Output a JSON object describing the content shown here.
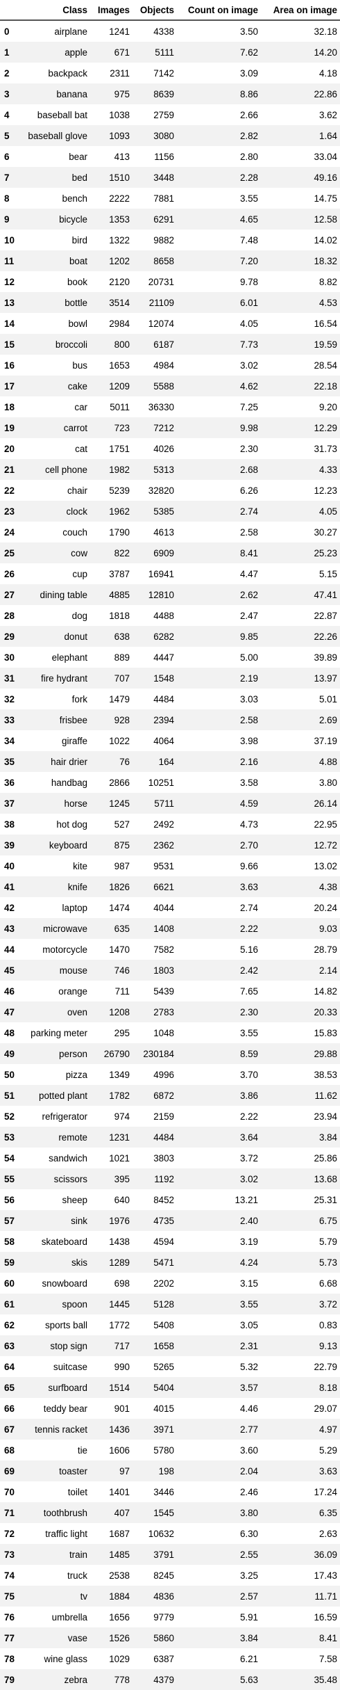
{
  "table": {
    "columns": [
      "",
      "Class",
      "Images",
      "Objects",
      "Count on image",
      "Area on image"
    ],
    "rows": [
      [
        "0",
        "airplane",
        "1241",
        "4338",
        "3.50",
        "32.18"
      ],
      [
        "1",
        "apple",
        "671",
        "5111",
        "7.62",
        "14.20"
      ],
      [
        "2",
        "backpack",
        "2311",
        "7142",
        "3.09",
        "4.18"
      ],
      [
        "3",
        "banana",
        "975",
        "8639",
        "8.86",
        "22.86"
      ],
      [
        "4",
        "baseball bat",
        "1038",
        "2759",
        "2.66",
        "3.62"
      ],
      [
        "5",
        "baseball glove",
        "1093",
        "3080",
        "2.82",
        "1.64"
      ],
      [
        "6",
        "bear",
        "413",
        "1156",
        "2.80",
        "33.04"
      ],
      [
        "7",
        "bed",
        "1510",
        "3448",
        "2.28",
        "49.16"
      ],
      [
        "8",
        "bench",
        "2222",
        "7881",
        "3.55",
        "14.75"
      ],
      [
        "9",
        "bicycle",
        "1353",
        "6291",
        "4.65",
        "12.58"
      ],
      [
        "10",
        "bird",
        "1322",
        "9882",
        "7.48",
        "14.02"
      ],
      [
        "11",
        "boat",
        "1202",
        "8658",
        "7.20",
        "18.32"
      ],
      [
        "12",
        "book",
        "2120",
        "20731",
        "9.78",
        "8.82"
      ],
      [
        "13",
        "bottle",
        "3514",
        "21109",
        "6.01",
        "4.53"
      ],
      [
        "14",
        "bowl",
        "2984",
        "12074",
        "4.05",
        "16.54"
      ],
      [
        "15",
        "broccoli",
        "800",
        "6187",
        "7.73",
        "19.59"
      ],
      [
        "16",
        "bus",
        "1653",
        "4984",
        "3.02",
        "28.54"
      ],
      [
        "17",
        "cake",
        "1209",
        "5588",
        "4.62",
        "22.18"
      ],
      [
        "18",
        "car",
        "5011",
        "36330",
        "7.25",
        "9.20"
      ],
      [
        "19",
        "carrot",
        "723",
        "7212",
        "9.98",
        "12.29"
      ],
      [
        "20",
        "cat",
        "1751",
        "4026",
        "2.30",
        "31.73"
      ],
      [
        "21",
        "cell phone",
        "1982",
        "5313",
        "2.68",
        "4.33"
      ],
      [
        "22",
        "chair",
        "5239",
        "32820",
        "6.26",
        "12.23"
      ],
      [
        "23",
        "clock",
        "1962",
        "5385",
        "2.74",
        "4.05"
      ],
      [
        "24",
        "couch",
        "1790",
        "4613",
        "2.58",
        "30.27"
      ],
      [
        "25",
        "cow",
        "822",
        "6909",
        "8.41",
        "25.23"
      ],
      [
        "26",
        "cup",
        "3787",
        "16941",
        "4.47",
        "5.15"
      ],
      [
        "27",
        "dining table",
        "4885",
        "12810",
        "2.62",
        "47.41"
      ],
      [
        "28",
        "dog",
        "1818",
        "4488",
        "2.47",
        "22.87"
      ],
      [
        "29",
        "donut",
        "638",
        "6282",
        "9.85",
        "22.26"
      ],
      [
        "30",
        "elephant",
        "889",
        "4447",
        "5.00",
        "39.89"
      ],
      [
        "31",
        "fire hydrant",
        "707",
        "1548",
        "2.19",
        "13.97"
      ],
      [
        "32",
        "fork",
        "1479",
        "4484",
        "3.03",
        "5.01"
      ],
      [
        "33",
        "frisbee",
        "928",
        "2394",
        "2.58",
        "2.69"
      ],
      [
        "34",
        "giraffe",
        "1022",
        "4064",
        "3.98",
        "37.19"
      ],
      [
        "35",
        "hair drier",
        "76",
        "164",
        "2.16",
        "4.88"
      ],
      [
        "36",
        "handbag",
        "2866",
        "10251",
        "3.58",
        "3.80"
      ],
      [
        "37",
        "horse",
        "1245",
        "5711",
        "4.59",
        "26.14"
      ],
      [
        "38",
        "hot dog",
        "527",
        "2492",
        "4.73",
        "22.95"
      ],
      [
        "39",
        "keyboard",
        "875",
        "2362",
        "2.70",
        "12.72"
      ],
      [
        "40",
        "kite",
        "987",
        "9531",
        "9.66",
        "13.02"
      ],
      [
        "41",
        "knife",
        "1826",
        "6621",
        "3.63",
        "4.38"
      ],
      [
        "42",
        "laptop",
        "1474",
        "4044",
        "2.74",
        "20.24"
      ],
      [
        "43",
        "microwave",
        "635",
        "1408",
        "2.22",
        "9.03"
      ],
      [
        "44",
        "motorcycle",
        "1470",
        "7582",
        "5.16",
        "28.79"
      ],
      [
        "45",
        "mouse",
        "746",
        "1803",
        "2.42",
        "2.14"
      ],
      [
        "46",
        "orange",
        "711",
        "5439",
        "7.65",
        "14.82"
      ],
      [
        "47",
        "oven",
        "1208",
        "2783",
        "2.30",
        "20.33"
      ],
      [
        "48",
        "parking meter",
        "295",
        "1048",
        "3.55",
        "15.83"
      ],
      [
        "49",
        "person",
        "26790",
        "230184",
        "8.59",
        "29.88"
      ],
      [
        "50",
        "pizza",
        "1349",
        "4996",
        "3.70",
        "38.53"
      ],
      [
        "51",
        "potted plant",
        "1782",
        "6872",
        "3.86",
        "11.62"
      ],
      [
        "52",
        "refrigerator",
        "974",
        "2159",
        "2.22",
        "23.94"
      ],
      [
        "53",
        "remote",
        "1231",
        "4484",
        "3.64",
        "3.84"
      ],
      [
        "54",
        "sandwich",
        "1021",
        "3803",
        "3.72",
        "25.86"
      ],
      [
        "55",
        "scissors",
        "395",
        "1192",
        "3.02",
        "13.68"
      ],
      [
        "56",
        "sheep",
        "640",
        "8452",
        "13.21",
        "25.31"
      ],
      [
        "57",
        "sink",
        "1976",
        "4735",
        "2.40",
        "6.75"
      ],
      [
        "58",
        "skateboard",
        "1438",
        "4594",
        "3.19",
        "5.79"
      ],
      [
        "59",
        "skis",
        "1289",
        "5471",
        "4.24",
        "5.73"
      ],
      [
        "60",
        "snowboard",
        "698",
        "2202",
        "3.15",
        "6.68"
      ],
      [
        "61",
        "spoon",
        "1445",
        "5128",
        "3.55",
        "3.72"
      ],
      [
        "62",
        "sports ball",
        "1772",
        "5408",
        "3.05",
        "0.83"
      ],
      [
        "63",
        "stop sign",
        "717",
        "1658",
        "2.31",
        "9.13"
      ],
      [
        "64",
        "suitcase",
        "990",
        "5265",
        "5.32",
        "22.79"
      ],
      [
        "65",
        "surfboard",
        "1514",
        "5404",
        "3.57",
        "8.18"
      ],
      [
        "66",
        "teddy bear",
        "901",
        "4015",
        "4.46",
        "29.07"
      ],
      [
        "67",
        "tennis racket",
        "1436",
        "3971",
        "2.77",
        "4.97"
      ],
      [
        "68",
        "tie",
        "1606",
        "5780",
        "3.60",
        "5.29"
      ],
      [
        "69",
        "toaster",
        "97",
        "198",
        "2.04",
        "3.63"
      ],
      [
        "70",
        "toilet",
        "1401",
        "3446",
        "2.46",
        "17.24"
      ],
      [
        "71",
        "toothbrush",
        "407",
        "1545",
        "3.80",
        "6.35"
      ],
      [
        "72",
        "traffic light",
        "1687",
        "10632",
        "6.30",
        "2.63"
      ],
      [
        "73",
        "train",
        "1485",
        "3791",
        "2.55",
        "36.09"
      ],
      [
        "74",
        "truck",
        "2538",
        "8245",
        "3.25",
        "17.43"
      ],
      [
        "75",
        "tv",
        "1884",
        "4836",
        "2.57",
        "11.71"
      ],
      [
        "76",
        "umbrella",
        "1656",
        "9779",
        "5.91",
        "16.59"
      ],
      [
        "77",
        "vase",
        "1526",
        "5860",
        "3.84",
        "8.41"
      ],
      [
        "78",
        "wine glass",
        "1029",
        "6387",
        "6.21",
        "7.58"
      ],
      [
        "79",
        "zebra",
        "778",
        "4379",
        "5.63",
        "35.48"
      ]
    ]
  }
}
